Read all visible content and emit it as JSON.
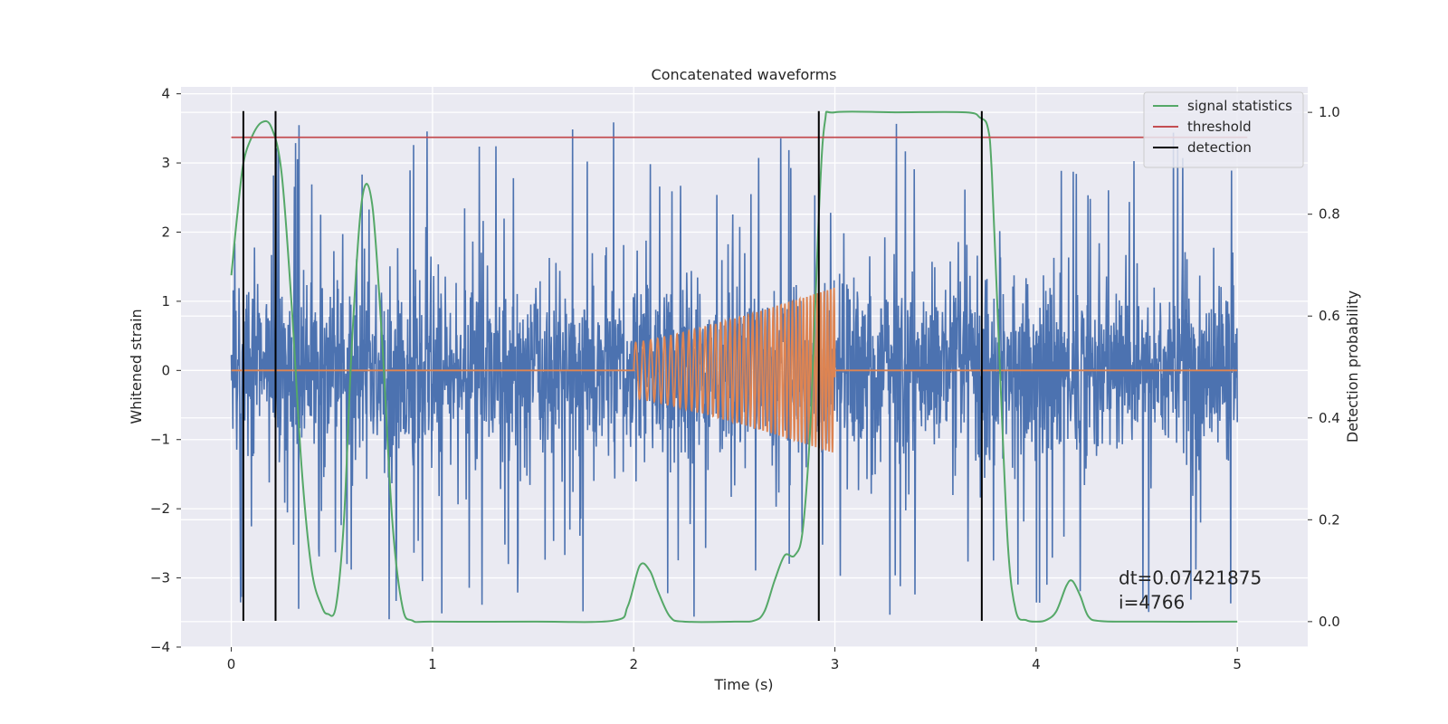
{
  "chart_data": {
    "type": "line",
    "title": "Concatenated waveforms",
    "xlabel": "Time (s)",
    "ylabel": "Whitened strain",
    "y2label": "Detection probability",
    "xlim": [
      -0.25,
      5.35
    ],
    "ylim": [
      -4.0,
      4.1
    ],
    "y2lim": [
      -0.05,
      1.05
    ],
    "xticks": [
      0,
      1,
      2,
      3,
      4,
      5
    ],
    "yticks": [
      -4,
      -3,
      -2,
      -1,
      0,
      1,
      2,
      3,
      4
    ],
    "y2ticks": [
      0.0,
      0.2,
      0.4,
      0.6,
      0.8,
      1.0
    ],
    "grid": true,
    "legend_position": "top-right",
    "legend": [
      {
        "label": "signal statistics",
        "color": "#55a868"
      },
      {
        "label": "threshold",
        "color": "#c44e52"
      },
      {
        "label": "detection",
        "color": "#000000"
      }
    ],
    "series": [
      {
        "name": "",
        "axis": "left",
        "kind": "noise",
        "color": "#4c72b0",
        "x_range": [
          0,
          5
        ],
        "typical_amplitude": 1.4,
        "peak_amplitude": 3.6
      },
      {
        "name": "",
        "axis": "left",
        "kind": "chirp",
        "color": "#dd8452",
        "x_range": [
          0,
          5
        ],
        "chirp_start": 2.0,
        "chirp_end": 3.0,
        "amplitude_start": 0.4,
        "amplitude_end": 1.2
      },
      {
        "name": "signal statistics",
        "axis": "right",
        "color": "#55a868",
        "x": [
          0.0,
          0.03,
          0.06,
          0.1,
          0.15,
          0.2,
          0.25,
          0.3,
          0.35,
          0.4,
          0.45,
          0.48,
          0.52,
          0.56,
          0.6,
          0.65,
          0.7,
          0.75,
          0.8,
          0.85,
          0.9,
          1.0,
          1.5,
          1.9,
          1.97,
          2.03,
          2.08,
          2.12,
          2.18,
          2.25,
          2.5,
          2.6,
          2.65,
          2.7,
          2.75,
          2.8,
          2.84,
          2.88,
          2.92,
          2.95,
          3.0,
          3.3,
          3.65,
          3.72,
          3.76,
          3.78,
          3.82,
          3.86,
          3.9,
          3.95,
          4.0,
          4.05,
          4.1,
          4.15,
          4.18,
          4.22,
          4.26,
          4.32,
          4.5,
          5.0
        ],
        "y": [
          0.68,
          0.8,
          0.9,
          0.95,
          0.98,
          0.97,
          0.88,
          0.62,
          0.3,
          0.1,
          0.03,
          0.015,
          0.03,
          0.2,
          0.55,
          0.83,
          0.82,
          0.55,
          0.2,
          0.03,
          0.002,
          0.0,
          0.0,
          0.002,
          0.03,
          0.11,
          0.1,
          0.06,
          0.01,
          0.0,
          0.0,
          0.002,
          0.02,
          0.08,
          0.13,
          0.13,
          0.18,
          0.4,
          0.8,
          0.98,
          1.0,
          1.0,
          1.0,
          0.99,
          0.97,
          0.88,
          0.5,
          0.15,
          0.02,
          0.003,
          0.0,
          0.003,
          0.02,
          0.07,
          0.08,
          0.05,
          0.01,
          0.001,
          0.0,
          0.0
        ]
      },
      {
        "name": "threshold",
        "axis": "left",
        "color": "#c44e52",
        "x": [
          0,
          5.05
        ],
        "y": [
          3.37,
          3.37
        ]
      },
      {
        "name": "detection",
        "axis": "left",
        "color": "#000000",
        "x": [
          0.06,
          0.22,
          2.92,
          3.73
        ],
        "y_range": [
          -3.62,
          3.75
        ]
      }
    ],
    "annotations": [
      {
        "text": "dt=0.07421875",
        "x": 4.5,
        "y": -3.0
      },
      {
        "text": " i=4766",
        "x": 4.5,
        "y": -3.35
      }
    ]
  }
}
